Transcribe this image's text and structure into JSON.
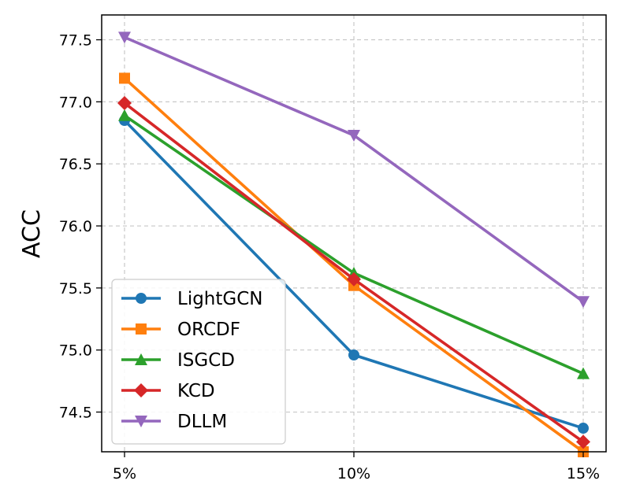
{
  "chart_data": {
    "type": "line",
    "title": "",
    "xlabel": "",
    "ylabel": "ACC",
    "categories": [
      "5%",
      "10%",
      "15%"
    ],
    "ylim": [
      74.18,
      77.7
    ],
    "yticks": [
      "74.5",
      "75.0",
      "75.5",
      "76.0",
      "76.5",
      "77.0",
      "77.5"
    ],
    "grid": true,
    "legend_position": "lower-left",
    "series": [
      {
        "name": "LightGCN",
        "values": [
          76.85,
          74.96,
          74.37
        ],
        "color": "#1f77b4",
        "marker": "circle"
      },
      {
        "name": "ORCDF",
        "values": [
          77.19,
          75.52,
          74.18
        ],
        "color": "#ff7f0e",
        "marker": "square"
      },
      {
        "name": "ISGCD",
        "values": [
          76.89,
          75.62,
          74.81
        ],
        "color": "#2ca02c",
        "marker": "triangle-up"
      },
      {
        "name": "KCD",
        "values": [
          76.99,
          75.57,
          74.26
        ],
        "color": "#d62728",
        "marker": "diamond"
      },
      {
        "name": "DLLM",
        "values": [
          77.52,
          76.73,
          75.39
        ],
        "color": "#9467bd",
        "marker": "triangle-down"
      }
    ]
  }
}
